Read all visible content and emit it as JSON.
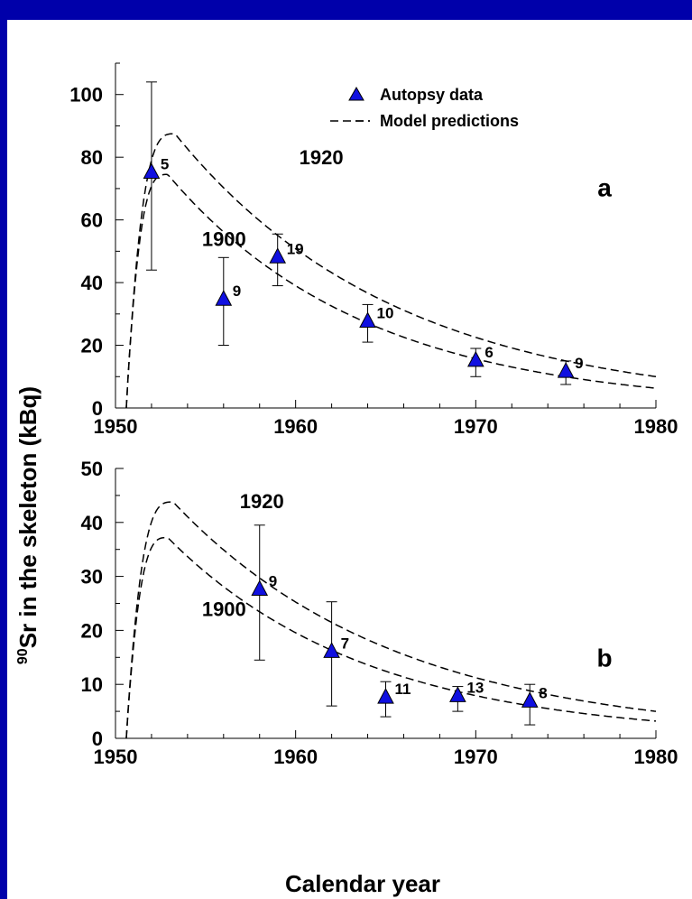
{
  "chart_data": {
    "x_label": "Calendar  year",
    "y_label_sup": "90",
    "y_label_main": "Sr in the skeleton (kBq)",
    "legend": {
      "marker_label": "Autopsy data",
      "line_label": "Model predictions"
    },
    "colors": {
      "marker": "#1010e0",
      "background_frame": "#0000aa"
    },
    "panels": [
      {
        "type": "scatter",
        "panel_label": "a",
        "xlim": [
          1950,
          1980
        ],
        "ylim": [
          0,
          110
        ],
        "xticks": [
          "1950",
          "1960",
          "1970",
          "1980"
        ],
        "yticks": [
          "0",
          "20",
          "40",
          "60",
          "80",
          "100"
        ],
        "points": [
          {
            "x": 1952,
            "y": 75,
            "err_low": 44,
            "err_high": 104,
            "n": "5"
          },
          {
            "x": 1956,
            "y": 34.5,
            "err_low": 20,
            "err_high": 48,
            "n": "9"
          },
          {
            "x": 1959,
            "y": 48,
            "err_low": 39,
            "err_high": 55.5,
            "n": "19"
          },
          {
            "x": 1964,
            "y": 27.5,
            "err_low": 21,
            "err_high": 33,
            "n": "10"
          },
          {
            "x": 1970,
            "y": 15,
            "err_low": 10,
            "err_high": 19,
            "n": "6"
          },
          {
            "x": 1975,
            "y": 11.5,
            "err_low": 7.5,
            "err_high": 15,
            "n": "9"
          }
        ],
        "curves": [
          {
            "name": "1920",
            "start": 1950.6,
            "peak_x": 1953.3,
            "peak_y": 87.5,
            "end_y": 10
          },
          {
            "name": "1900",
            "start": 1950.6,
            "peak_x": 1952.9,
            "peak_y": 74.5,
            "end_y": 6.3
          }
        ]
      },
      {
        "type": "scatter",
        "panel_label": "b",
        "xlim": [
          1950,
          1980
        ],
        "ylim": [
          0,
          50
        ],
        "xticks": [
          "1950",
          "1960",
          "1970",
          "1980"
        ],
        "yticks": [
          "0",
          "10",
          "20",
          "30",
          "40",
          "50"
        ],
        "points": [
          {
            "x": 1958,
            "y": 27.5,
            "err_low": 14.5,
            "err_high": 39.5,
            "n": "9"
          },
          {
            "x": 1962,
            "y": 16,
            "err_low": 6,
            "err_high": 25.3,
            "n": "7"
          },
          {
            "x": 1965,
            "y": 7.5,
            "err_low": 4,
            "err_high": 10.5,
            "n": "11"
          },
          {
            "x": 1969,
            "y": 7.8,
            "err_low": 5,
            "err_high": 9.6,
            "n": "13"
          },
          {
            "x": 1973,
            "y": 6.8,
            "err_low": 2.5,
            "err_high": 10,
            "n": "8"
          }
        ],
        "curves": [
          {
            "name": "1920",
            "start": 1950.6,
            "peak_x": 1953.2,
            "peak_y": 43.8,
            "end_y": 5
          },
          {
            "name": "1900",
            "start": 1950.6,
            "peak_x": 1952.9,
            "peak_y": 37.2,
            "end_y": 3.2
          }
        ]
      }
    ]
  }
}
